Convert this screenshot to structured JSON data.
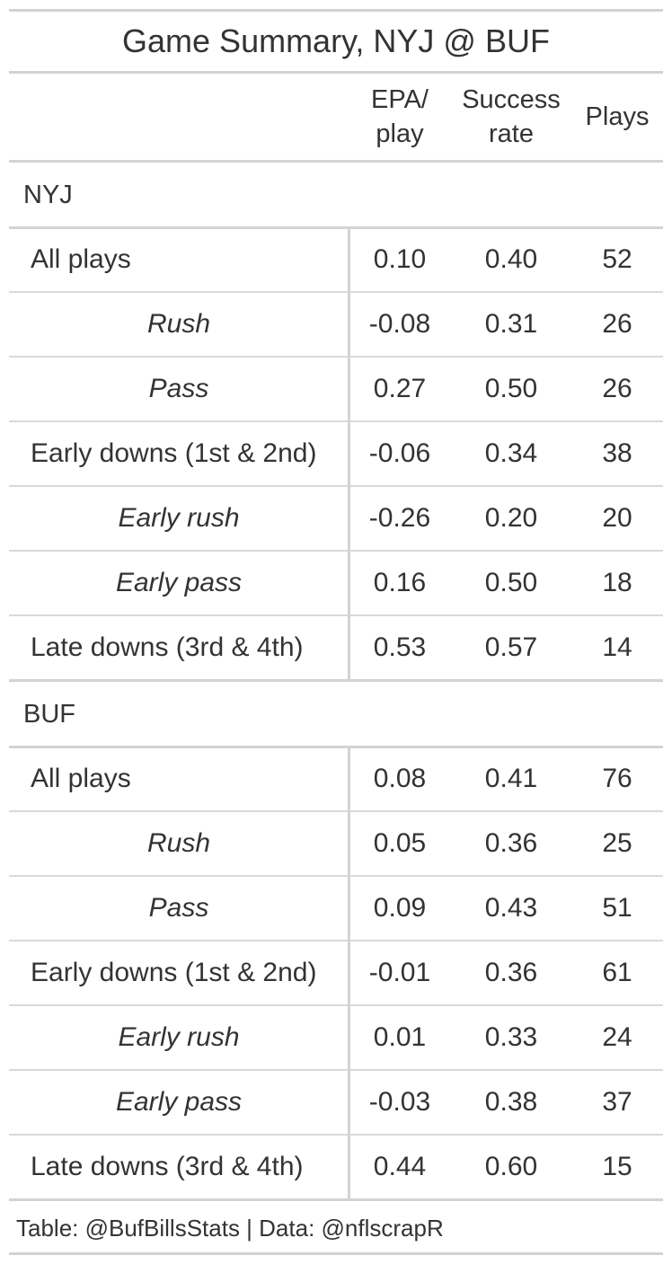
{
  "chart_data": {
    "type": "table",
    "title": "Game Summary, NYJ @ BUF",
    "columns": [
      "EPA/\nplay",
      "Success\nrate",
      "Plays"
    ],
    "groups": [
      {
        "name": "NYJ",
        "rows": [
          {
            "label": "All plays",
            "style": "main",
            "epa": "0.10",
            "success": "0.40",
            "plays": "52"
          },
          {
            "label": "Rush",
            "style": "sub",
            "epa": "-0.08",
            "success": "0.31",
            "plays": "26"
          },
          {
            "label": "Pass",
            "style": "sub",
            "epa": "0.27",
            "success": "0.50",
            "plays": "26"
          },
          {
            "label": "Early downs (1st & 2nd)",
            "style": "main",
            "epa": "-0.06",
            "success": "0.34",
            "plays": "38"
          },
          {
            "label": "Early rush",
            "style": "sub",
            "epa": "-0.26",
            "success": "0.20",
            "plays": "20"
          },
          {
            "label": "Early pass",
            "style": "sub",
            "epa": "0.16",
            "success": "0.50",
            "plays": "18"
          },
          {
            "label": "Late downs (3rd & 4th)",
            "style": "main",
            "epa": "0.53",
            "success": "0.57",
            "plays": "14"
          }
        ]
      },
      {
        "name": "BUF",
        "rows": [
          {
            "label": "All plays",
            "style": "main",
            "epa": "0.08",
            "success": "0.41",
            "plays": "76"
          },
          {
            "label": "Rush",
            "style": "sub",
            "epa": "0.05",
            "success": "0.36",
            "plays": "25"
          },
          {
            "label": "Pass",
            "style": "sub",
            "epa": "0.09",
            "success": "0.43",
            "plays": "51"
          },
          {
            "label": "Early downs (1st & 2nd)",
            "style": "main",
            "epa": "-0.01",
            "success": "0.36",
            "plays": "61"
          },
          {
            "label": "Early rush",
            "style": "sub",
            "epa": "0.01",
            "success": "0.33",
            "plays": "24"
          },
          {
            "label": "Early pass",
            "style": "sub",
            "epa": "-0.03",
            "success": "0.38",
            "plays": "37"
          },
          {
            "label": "Late downs (3rd & 4th)",
            "style": "main",
            "epa": "0.44",
            "success": "0.60",
            "plays": "15"
          }
        ]
      }
    ],
    "source_note": "Table: @BufBillsStats | Data: @nflscrapR"
  }
}
